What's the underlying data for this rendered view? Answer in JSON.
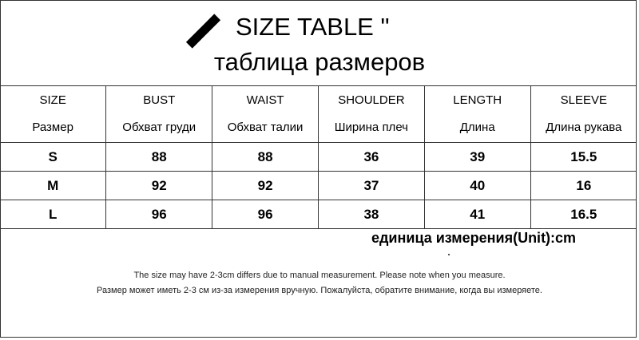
{
  "title": {
    "en": "SIZE TABLE \"",
    "ru": "таблица размеров",
    "icon": "slash-icon"
  },
  "table": {
    "headers": [
      {
        "en": "SIZE",
        "ru": "Размер"
      },
      {
        "en": "BUST",
        "ru": "Обхват груди"
      },
      {
        "en": "WAIST",
        "ru": "Обхват талии"
      },
      {
        "en": "SHOULDER",
        "ru": "Ширина плеч"
      },
      {
        "en": "LENGTH",
        "ru": "Длина"
      },
      {
        "en": "SLEEVE",
        "ru": "Длина рукава"
      }
    ],
    "rows": [
      [
        "S",
        "88",
        "88",
        "36",
        "39",
        "15.5"
      ],
      [
        "M",
        "92",
        "92",
        "37",
        "40",
        "16"
      ],
      [
        "L",
        "96",
        "96",
        "38",
        "41",
        "16.5"
      ]
    ]
  },
  "unit": "единица измерения(Unit):cm",
  "notes": {
    "en": "The size may have 2-3cm differs due to manual measurement. Please note when you measure.",
    "ru": "Размер может иметь 2-3 см из-за измерения вручную. Пожалуйста, обратите внимание, когда вы измеряете."
  }
}
